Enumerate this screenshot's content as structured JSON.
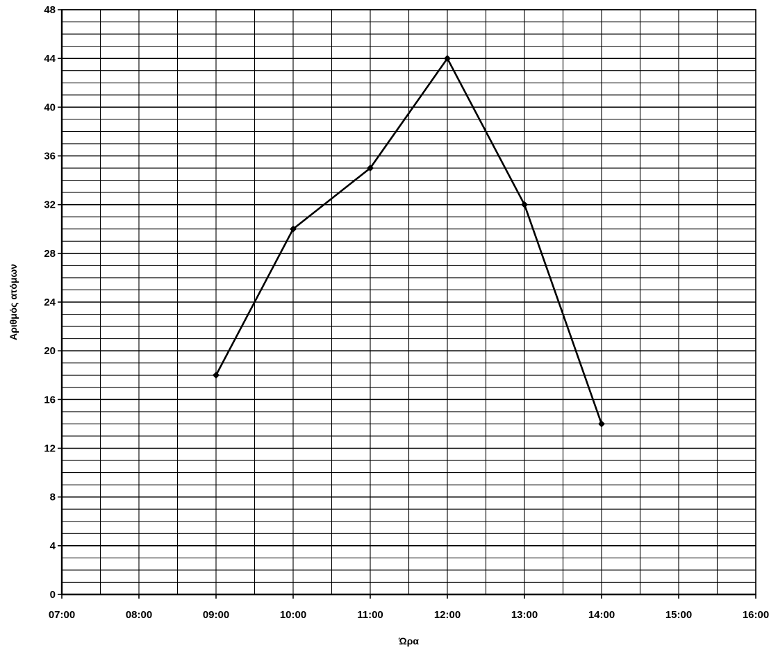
{
  "chart_data": {
    "type": "line",
    "title": "",
    "xlabel": "Ώρα",
    "ylabel": "Αριθμός ατόμων",
    "x_ticks": [
      "07:00",
      "08:00",
      "09:00",
      "10:00",
      "11:00",
      "12:00",
      "13:00",
      "14:00",
      "15:00",
      "16:00"
    ],
    "xlim": [
      "07:00",
      "16:00"
    ],
    "y_ticks": [
      0,
      4,
      8,
      12,
      16,
      20,
      24,
      28,
      32,
      36,
      40,
      44,
      48
    ],
    "ylim": [
      0,
      48
    ],
    "grid": true,
    "legend": "none",
    "series": [
      {
        "x": [
          "09:00",
          "10:00",
          "11:00",
          "12:00",
          "13:00",
          "14:00"
        ],
        "y": [
          18,
          30,
          35,
          44,
          32,
          14
        ],
        "color": "#000000",
        "marker": "diamond"
      }
    ]
  }
}
